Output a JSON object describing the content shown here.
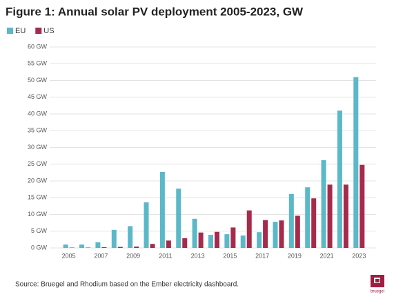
{
  "chart_data": {
    "type": "bar",
    "title": "Figure 1: Annual solar PV deployment 2005-2023, GW",
    "categories": [
      "2005",
      null,
      "2007",
      null,
      "2009",
      null,
      "2011",
      null,
      "2013",
      null,
      "2015",
      null,
      "2017",
      null,
      "2019",
      null,
      "2021",
      null,
      "2023"
    ],
    "series": [
      {
        "name": "EU",
        "color": "#5bb8c9",
        "values": [
          1.0,
          1.0,
          1.7,
          5.4,
          6.5,
          13.6,
          22.7,
          17.7,
          8.7,
          3.9,
          4.1,
          3.7,
          4.7,
          7.8,
          16.1,
          18.1,
          26.2,
          41.0,
          51.0
        ]
      },
      {
        "name": "US",
        "color": "#a82a4b",
        "values": [
          0.1,
          0.1,
          0.2,
          0.3,
          0.4,
          1.2,
          2.2,
          2.9,
          4.6,
          4.8,
          6.1,
          11.2,
          8.3,
          8.2,
          9.6,
          14.8,
          18.9,
          18.9,
          24.8
        ]
      }
    ],
    "ylim": [
      0,
      60
    ],
    "yticks": [
      {
        "value": 0,
        "label": "0 GW"
      },
      {
        "value": 5,
        "label": "5 GW"
      },
      {
        "value": 10,
        "label": "10 GW"
      },
      {
        "value": 15,
        "label": "15 GW"
      },
      {
        "value": 20,
        "label": "20 GW"
      },
      {
        "value": 25,
        "label": "25 GW"
      },
      {
        "value": 30,
        "label": "30 GW"
      },
      {
        "value": 35,
        "label": "35 GW"
      },
      {
        "value": 40,
        "label": "40 GW"
      },
      {
        "value": 45,
        "label": "45 GW"
      },
      {
        "value": 50,
        "label": "50 GW"
      },
      {
        "value": 55,
        "label": "55 GW"
      },
      {
        "value": 60,
        "label": "60 GW"
      }
    ],
    "grid": true,
    "legend": "top-left",
    "source": "Source: Bruegel and Rhodium based on the Ember electricity dashboard.",
    "logo": "bruegel"
  }
}
